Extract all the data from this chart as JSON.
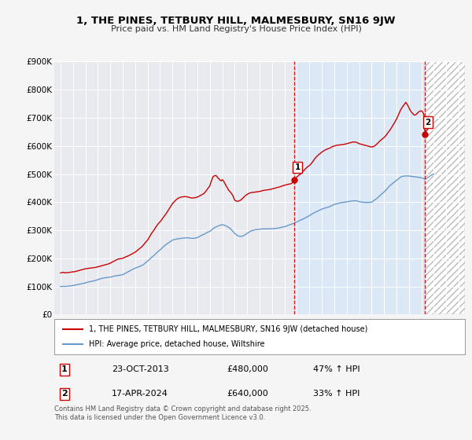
{
  "title": "1, THE PINES, TETBURY HILL, MALMESBURY, SN16 9JW",
  "subtitle": "Price paid vs. HM Land Registry's House Price Index (HPI)",
  "fig_bg_color": "#f5f5f5",
  "plot_bg_color": "#e8eaf0",
  "grid_color": "#ffffff",
  "red_line_color": "#cc0000",
  "blue_line_color": "#6699cc",
  "shade_between_color": "#dce8f5",
  "shade_after_color": "#e0e0e0",
  "marker1_date_x": 2013.81,
  "marker2_date_x": 2024.29,
  "marker1_red_y": 480000,
  "marker2_red_y": 640000,
  "legend_entries": [
    "1, THE PINES, TETBURY HILL, MALMESBURY, SN16 9JW (detached house)",
    "HPI: Average price, detached house, Wiltshire"
  ],
  "table_rows": [
    [
      "1",
      "23-OCT-2013",
      "£480,000",
      "47% ↑ HPI"
    ],
    [
      "2",
      "17-APR-2024",
      "£640,000",
      "33% ↑ HPI"
    ]
  ],
  "footer": "Contains HM Land Registry data © Crown copyright and database right 2025.\nThis data is licensed under the Open Government Licence v3.0.",
  "xlim": [
    1994.5,
    2027.5
  ],
  "ylim": [
    0,
    900000
  ],
  "yticks": [
    0,
    100000,
    200000,
    300000,
    400000,
    500000,
    600000,
    700000,
    800000,
    900000
  ],
  "ytick_labels": [
    "£0",
    "£100K",
    "£200K",
    "£300K",
    "£400K",
    "£500K",
    "£600K",
    "£700K",
    "£800K",
    "£900K"
  ],
  "red_data": [
    [
      1995.0,
      148000
    ],
    [
      1995.08,
      149000
    ],
    [
      1995.17,
      150000
    ],
    [
      1995.25,
      150500
    ],
    [
      1995.33,
      149000
    ],
    [
      1995.42,
      148500
    ],
    [
      1995.5,
      149000
    ],
    [
      1995.58,
      149500
    ],
    [
      1995.67,
      150000
    ],
    [
      1995.75,
      150500
    ],
    [
      1995.83,
      151000
    ],
    [
      1995.92,
      151500
    ],
    [
      1996.0,
      152000
    ],
    [
      1996.17,
      153000
    ],
    [
      1996.33,
      155000
    ],
    [
      1996.5,
      157000
    ],
    [
      1996.67,
      159000
    ],
    [
      1996.83,
      161000
    ],
    [
      1997.0,
      163000
    ],
    [
      1997.17,
      164000
    ],
    [
      1997.33,
      165000
    ],
    [
      1997.5,
      166000
    ],
    [
      1997.67,
      167000
    ],
    [
      1997.83,
      168000
    ],
    [
      1998.0,
      170000
    ],
    [
      1998.17,
      172000
    ],
    [
      1998.33,
      174000
    ],
    [
      1998.5,
      176000
    ],
    [
      1998.67,
      178000
    ],
    [
      1998.83,
      180000
    ],
    [
      1999.0,
      183000
    ],
    [
      1999.17,
      187000
    ],
    [
      1999.33,
      191000
    ],
    [
      1999.5,
      195000
    ],
    [
      1999.67,
      198000
    ],
    [
      1999.83,
      199000
    ],
    [
      2000.0,
      200000
    ],
    [
      2000.17,
      204000
    ],
    [
      2000.33,
      207000
    ],
    [
      2000.5,
      210000
    ],
    [
      2000.67,
      214000
    ],
    [
      2000.83,
      218000
    ],
    [
      2001.0,
      222000
    ],
    [
      2001.17,
      228000
    ],
    [
      2001.33,
      234000
    ],
    [
      2001.5,
      240000
    ],
    [
      2001.67,
      248000
    ],
    [
      2001.83,
      257000
    ],
    [
      2002.0,
      265000
    ],
    [
      2002.17,
      278000
    ],
    [
      2002.33,
      290000
    ],
    [
      2002.5,
      300000
    ],
    [
      2002.67,
      312000
    ],
    [
      2002.83,
      322000
    ],
    [
      2003.0,
      330000
    ],
    [
      2003.17,
      340000
    ],
    [
      2003.33,
      350000
    ],
    [
      2003.5,
      360000
    ],
    [
      2003.67,
      372000
    ],
    [
      2003.83,
      383000
    ],
    [
      2004.0,
      395000
    ],
    [
      2004.17,
      403000
    ],
    [
      2004.33,
      410000
    ],
    [
      2004.5,
      415000
    ],
    [
      2004.67,
      418000
    ],
    [
      2004.83,
      419000
    ],
    [
      2005.0,
      420000
    ],
    [
      2005.17,
      419000
    ],
    [
      2005.33,
      417000
    ],
    [
      2005.5,
      415000
    ],
    [
      2005.67,
      415000
    ],
    [
      2005.83,
      416000
    ],
    [
      2006.0,
      418000
    ],
    [
      2006.17,
      422000
    ],
    [
      2006.33,
      426000
    ],
    [
      2006.5,
      430000
    ],
    [
      2006.67,
      438000
    ],
    [
      2006.83,
      448000
    ],
    [
      2007.0,
      458000
    ],
    [
      2007.08,
      470000
    ],
    [
      2007.17,
      480000
    ],
    [
      2007.25,
      490000
    ],
    [
      2007.33,
      493000
    ],
    [
      2007.42,
      494000
    ],
    [
      2007.5,
      495000
    ],
    [
      2007.58,
      490000
    ],
    [
      2007.67,
      486000
    ],
    [
      2007.75,
      482000
    ],
    [
      2007.83,
      478000
    ],
    [
      2007.92,
      476000
    ],
    [
      2008.0,
      480000
    ],
    [
      2008.08,
      476000
    ],
    [
      2008.17,
      470000
    ],
    [
      2008.25,
      463000
    ],
    [
      2008.33,
      456000
    ],
    [
      2008.42,
      450000
    ],
    [
      2008.5,
      443000
    ],
    [
      2008.67,
      435000
    ],
    [
      2008.83,
      425000
    ],
    [
      2009.0,
      407000
    ],
    [
      2009.17,
      403000
    ],
    [
      2009.33,
      404000
    ],
    [
      2009.5,
      408000
    ],
    [
      2009.67,
      415000
    ],
    [
      2009.83,
      422000
    ],
    [
      2010.0,
      428000
    ],
    [
      2010.17,
      432000
    ],
    [
      2010.33,
      434000
    ],
    [
      2010.5,
      435000
    ],
    [
      2010.67,
      436000
    ],
    [
      2010.83,
      437000
    ],
    [
      2011.0,
      438000
    ],
    [
      2011.17,
      440000
    ],
    [
      2011.33,
      442000
    ],
    [
      2011.5,
      443000
    ],
    [
      2011.67,
      444000
    ],
    [
      2011.83,
      445000
    ],
    [
      2012.0,
      447000
    ],
    [
      2012.17,
      449000
    ],
    [
      2012.33,
      451000
    ],
    [
      2012.5,
      453000
    ],
    [
      2012.67,
      455000
    ],
    [
      2012.83,
      458000
    ],
    [
      2013.0,
      460000
    ],
    [
      2013.17,
      462000
    ],
    [
      2013.33,
      464000
    ],
    [
      2013.5,
      465000
    ],
    [
      2013.67,
      470000
    ],
    [
      2013.81,
      480000
    ],
    [
      2014.0,
      490000
    ],
    [
      2014.17,
      496000
    ],
    [
      2014.33,
      502000
    ],
    [
      2014.5,
      510000
    ],
    [
      2014.67,
      518000
    ],
    [
      2014.83,
      525000
    ],
    [
      2015.0,
      530000
    ],
    [
      2015.17,
      538000
    ],
    [
      2015.33,
      548000
    ],
    [
      2015.5,
      558000
    ],
    [
      2015.67,
      566000
    ],
    [
      2015.83,
      572000
    ],
    [
      2016.0,
      578000
    ],
    [
      2016.17,
      583000
    ],
    [
      2016.33,
      587000
    ],
    [
      2016.5,
      590000
    ],
    [
      2016.67,
      593000
    ],
    [
      2016.83,
      597000
    ],
    [
      2017.0,
      600000
    ],
    [
      2017.17,
      602000
    ],
    [
      2017.33,
      603000
    ],
    [
      2017.5,
      604000
    ],
    [
      2017.67,
      605000
    ],
    [
      2017.83,
      606000
    ],
    [
      2018.0,
      608000
    ],
    [
      2018.17,
      610000
    ],
    [
      2018.33,
      612000
    ],
    [
      2018.5,
      614000
    ],
    [
      2018.67,
      614000
    ],
    [
      2018.83,
      612000
    ],
    [
      2019.0,
      608000
    ],
    [
      2019.17,
      606000
    ],
    [
      2019.33,
      604000
    ],
    [
      2019.5,
      602000
    ],
    [
      2019.67,
      600000
    ],
    [
      2019.83,
      598000
    ],
    [
      2020.0,
      596000
    ],
    [
      2020.17,
      598000
    ],
    [
      2020.33,
      603000
    ],
    [
      2020.5,
      610000
    ],
    [
      2020.67,
      618000
    ],
    [
      2020.83,
      624000
    ],
    [
      2021.0,
      630000
    ],
    [
      2021.17,
      638000
    ],
    [
      2021.33,
      648000
    ],
    [
      2021.5,
      658000
    ],
    [
      2021.67,
      670000
    ],
    [
      2021.83,
      682000
    ],
    [
      2022.0,
      695000
    ],
    [
      2022.17,
      712000
    ],
    [
      2022.33,
      728000
    ],
    [
      2022.5,
      740000
    ],
    [
      2022.67,
      750000
    ],
    [
      2022.75,
      755000
    ],
    [
      2022.83,
      750000
    ],
    [
      2022.92,
      743000
    ],
    [
      2023.0,
      736000
    ],
    [
      2023.08,
      728000
    ],
    [
      2023.17,
      722000
    ],
    [
      2023.25,
      718000
    ],
    [
      2023.33,
      714000
    ],
    [
      2023.42,
      710000
    ],
    [
      2023.5,
      710000
    ],
    [
      2023.58,
      712000
    ],
    [
      2023.67,
      716000
    ],
    [
      2023.75,
      720000
    ],
    [
      2023.83,
      722000
    ],
    [
      2023.92,
      724000
    ],
    [
      2024.0,
      725000
    ],
    [
      2024.08,
      722000
    ],
    [
      2024.17,
      715000
    ],
    [
      2024.25,
      700000
    ],
    [
      2024.29,
      640000
    ],
    [
      2024.33,
      648000
    ],
    [
      2024.42,
      655000
    ],
    [
      2024.5,
      660000
    ],
    [
      2024.58,
      663000
    ],
    [
      2024.67,
      666000
    ],
    [
      2024.75,
      668000
    ]
  ],
  "blue_data": [
    [
      1995.0,
      100000
    ],
    [
      1995.08,
      100200
    ],
    [
      1995.17,
      100400
    ],
    [
      1995.25,
      100500
    ],
    [
      1995.33,
      100300
    ],
    [
      1995.42,
      100100
    ],
    [
      1995.5,
      100500
    ],
    [
      1995.58,
      101000
    ],
    [
      1995.67,
      101500
    ],
    [
      1995.75,
      102000
    ],
    [
      1995.83,
      102500
    ],
    [
      1995.92,
      103000
    ],
    [
      1996.0,
      103500
    ],
    [
      1996.17,
      105000
    ],
    [
      1996.33,
      106500
    ],
    [
      1996.5,
      108000
    ],
    [
      1996.67,
      109500
    ],
    [
      1996.83,
      111000
    ],
    [
      1997.0,
      113000
    ],
    [
      1997.17,
      115000
    ],
    [
      1997.33,
      117000
    ],
    [
      1997.5,
      118500
    ],
    [
      1997.67,
      120000
    ],
    [
      1997.83,
      122000
    ],
    [
      1998.0,
      124500
    ],
    [
      1998.17,
      127000
    ],
    [
      1998.33,
      129000
    ],
    [
      1998.5,
      130500
    ],
    [
      1998.67,
      131500
    ],
    [
      1998.83,
      132500
    ],
    [
      1999.0,
      133500
    ],
    [
      1999.17,
      135000
    ],
    [
      1999.33,
      137000
    ],
    [
      1999.5,
      138500
    ],
    [
      1999.67,
      139500
    ],
    [
      1999.83,
      140500
    ],
    [
      2000.0,
      142000
    ],
    [
      2000.17,
      146000
    ],
    [
      2000.33,
      150000
    ],
    [
      2000.5,
      154000
    ],
    [
      2000.67,
      158000
    ],
    [
      2000.83,
      162000
    ],
    [
      2001.0,
      165000
    ],
    [
      2001.17,
      168000
    ],
    [
      2001.33,
      171000
    ],
    [
      2001.5,
      174000
    ],
    [
      2001.67,
      178000
    ],
    [
      2001.83,
      184000
    ],
    [
      2002.0,
      190000
    ],
    [
      2002.17,
      197000
    ],
    [
      2002.33,
      204000
    ],
    [
      2002.5,
      210000
    ],
    [
      2002.67,
      217000
    ],
    [
      2002.83,
      224000
    ],
    [
      2003.0,
      230000
    ],
    [
      2003.17,
      237000
    ],
    [
      2003.33,
      244000
    ],
    [
      2003.5,
      250000
    ],
    [
      2003.67,
      255000
    ],
    [
      2003.83,
      260000
    ],
    [
      2004.0,
      265000
    ],
    [
      2004.17,
      267000
    ],
    [
      2004.33,
      269000
    ],
    [
      2004.5,
      270000
    ],
    [
      2004.67,
      271000
    ],
    [
      2004.83,
      272000
    ],
    [
      2005.0,
      273000
    ],
    [
      2005.17,
      273500
    ],
    [
      2005.33,
      272500
    ],
    [
      2005.5,
      271500
    ],
    [
      2005.67,
      271000
    ],
    [
      2005.83,
      272000
    ],
    [
      2006.0,
      274000
    ],
    [
      2006.17,
      278000
    ],
    [
      2006.33,
      282000
    ],
    [
      2006.5,
      285000
    ],
    [
      2006.67,
      289000
    ],
    [
      2006.83,
      293000
    ],
    [
      2007.0,
      296000
    ],
    [
      2007.17,
      302000
    ],
    [
      2007.33,
      308000
    ],
    [
      2007.5,
      312000
    ],
    [
      2007.67,
      315000
    ],
    [
      2007.83,
      318000
    ],
    [
      2008.0,
      320000
    ],
    [
      2008.17,
      318000
    ],
    [
      2008.33,
      315000
    ],
    [
      2008.5,
      311000
    ],
    [
      2008.67,
      305000
    ],
    [
      2008.83,
      297000
    ],
    [
      2009.0,
      289000
    ],
    [
      2009.17,
      283000
    ],
    [
      2009.33,
      279000
    ],
    [
      2009.5,
      278000
    ],
    [
      2009.67,
      280000
    ],
    [
      2009.83,
      284000
    ],
    [
      2010.0,
      289000
    ],
    [
      2010.17,
      294000
    ],
    [
      2010.33,
      298000
    ],
    [
      2010.5,
      300000
    ],
    [
      2010.67,
      302000
    ],
    [
      2010.83,
      303000
    ],
    [
      2011.0,
      304000
    ],
    [
      2011.17,
      304500
    ],
    [
      2011.33,
      305000
    ],
    [
      2011.5,
      305000
    ],
    [
      2011.67,
      305000
    ],
    [
      2011.83,
      305500
    ],
    [
      2012.0,
      305500
    ],
    [
      2012.17,
      306000
    ],
    [
      2012.33,
      307000
    ],
    [
      2012.5,
      308000
    ],
    [
      2012.67,
      309500
    ],
    [
      2012.83,
      311000
    ],
    [
      2013.0,
      312500
    ],
    [
      2013.17,
      315000
    ],
    [
      2013.33,
      318000
    ],
    [
      2013.5,
      321000
    ],
    [
      2013.67,
      323000
    ],
    [
      2013.81,
      326000
    ],
    [
      2014.0,
      330000
    ],
    [
      2014.17,
      334000
    ],
    [
      2014.33,
      337000
    ],
    [
      2014.5,
      340000
    ],
    [
      2014.67,
      344000
    ],
    [
      2014.83,
      348000
    ],
    [
      2015.0,
      352000
    ],
    [
      2015.17,
      357000
    ],
    [
      2015.33,
      361000
    ],
    [
      2015.5,
      365000
    ],
    [
      2015.67,
      368000
    ],
    [
      2015.83,
      372000
    ],
    [
      2016.0,
      375000
    ],
    [
      2016.17,
      378000
    ],
    [
      2016.33,
      380000
    ],
    [
      2016.5,
      382000
    ],
    [
      2016.67,
      385000
    ],
    [
      2016.83,
      388000
    ],
    [
      2017.0,
      392000
    ],
    [
      2017.17,
      394000
    ],
    [
      2017.33,
      396000
    ],
    [
      2017.5,
      398000
    ],
    [
      2017.67,
      399000
    ],
    [
      2017.83,
      400000
    ],
    [
      2018.0,
      401000
    ],
    [
      2018.17,
      402500
    ],
    [
      2018.33,
      403500
    ],
    [
      2018.5,
      404500
    ],
    [
      2018.67,
      405000
    ],
    [
      2018.83,
      404000
    ],
    [
      2019.0,
      402000
    ],
    [
      2019.17,
      400500
    ],
    [
      2019.33,
      399500
    ],
    [
      2019.5,
      399000
    ],
    [
      2019.67,
      399000
    ],
    [
      2019.83,
      399500
    ],
    [
      2020.0,
      400000
    ],
    [
      2020.17,
      405000
    ],
    [
      2020.33,
      410000
    ],
    [
      2020.5,
      416000
    ],
    [
      2020.67,
      423000
    ],
    [
      2020.83,
      430000
    ],
    [
      2021.0,
      436000
    ],
    [
      2021.17,
      444000
    ],
    [
      2021.33,
      452000
    ],
    [
      2021.5,
      460000
    ],
    [
      2021.67,
      466000
    ],
    [
      2021.83,
      472000
    ],
    [
      2022.0,
      478000
    ],
    [
      2022.17,
      484000
    ],
    [
      2022.33,
      489000
    ],
    [
      2022.5,
      492000
    ],
    [
      2022.67,
      493000
    ],
    [
      2022.83,
      493500
    ],
    [
      2023.0,
      493000
    ],
    [
      2023.17,
      492000
    ],
    [
      2023.33,
      491000
    ],
    [
      2023.5,
      490000
    ],
    [
      2023.67,
      489000
    ],
    [
      2023.83,
      488000
    ],
    [
      2024.0,
      487000
    ],
    [
      2024.17,
      484000
    ],
    [
      2024.29,
      481000
    ],
    [
      2024.42,
      484000
    ],
    [
      2024.5,
      487000
    ],
    [
      2024.67,
      492000
    ],
    [
      2024.75,
      495000
    ],
    [
      2025.0,
      500000
    ]
  ]
}
